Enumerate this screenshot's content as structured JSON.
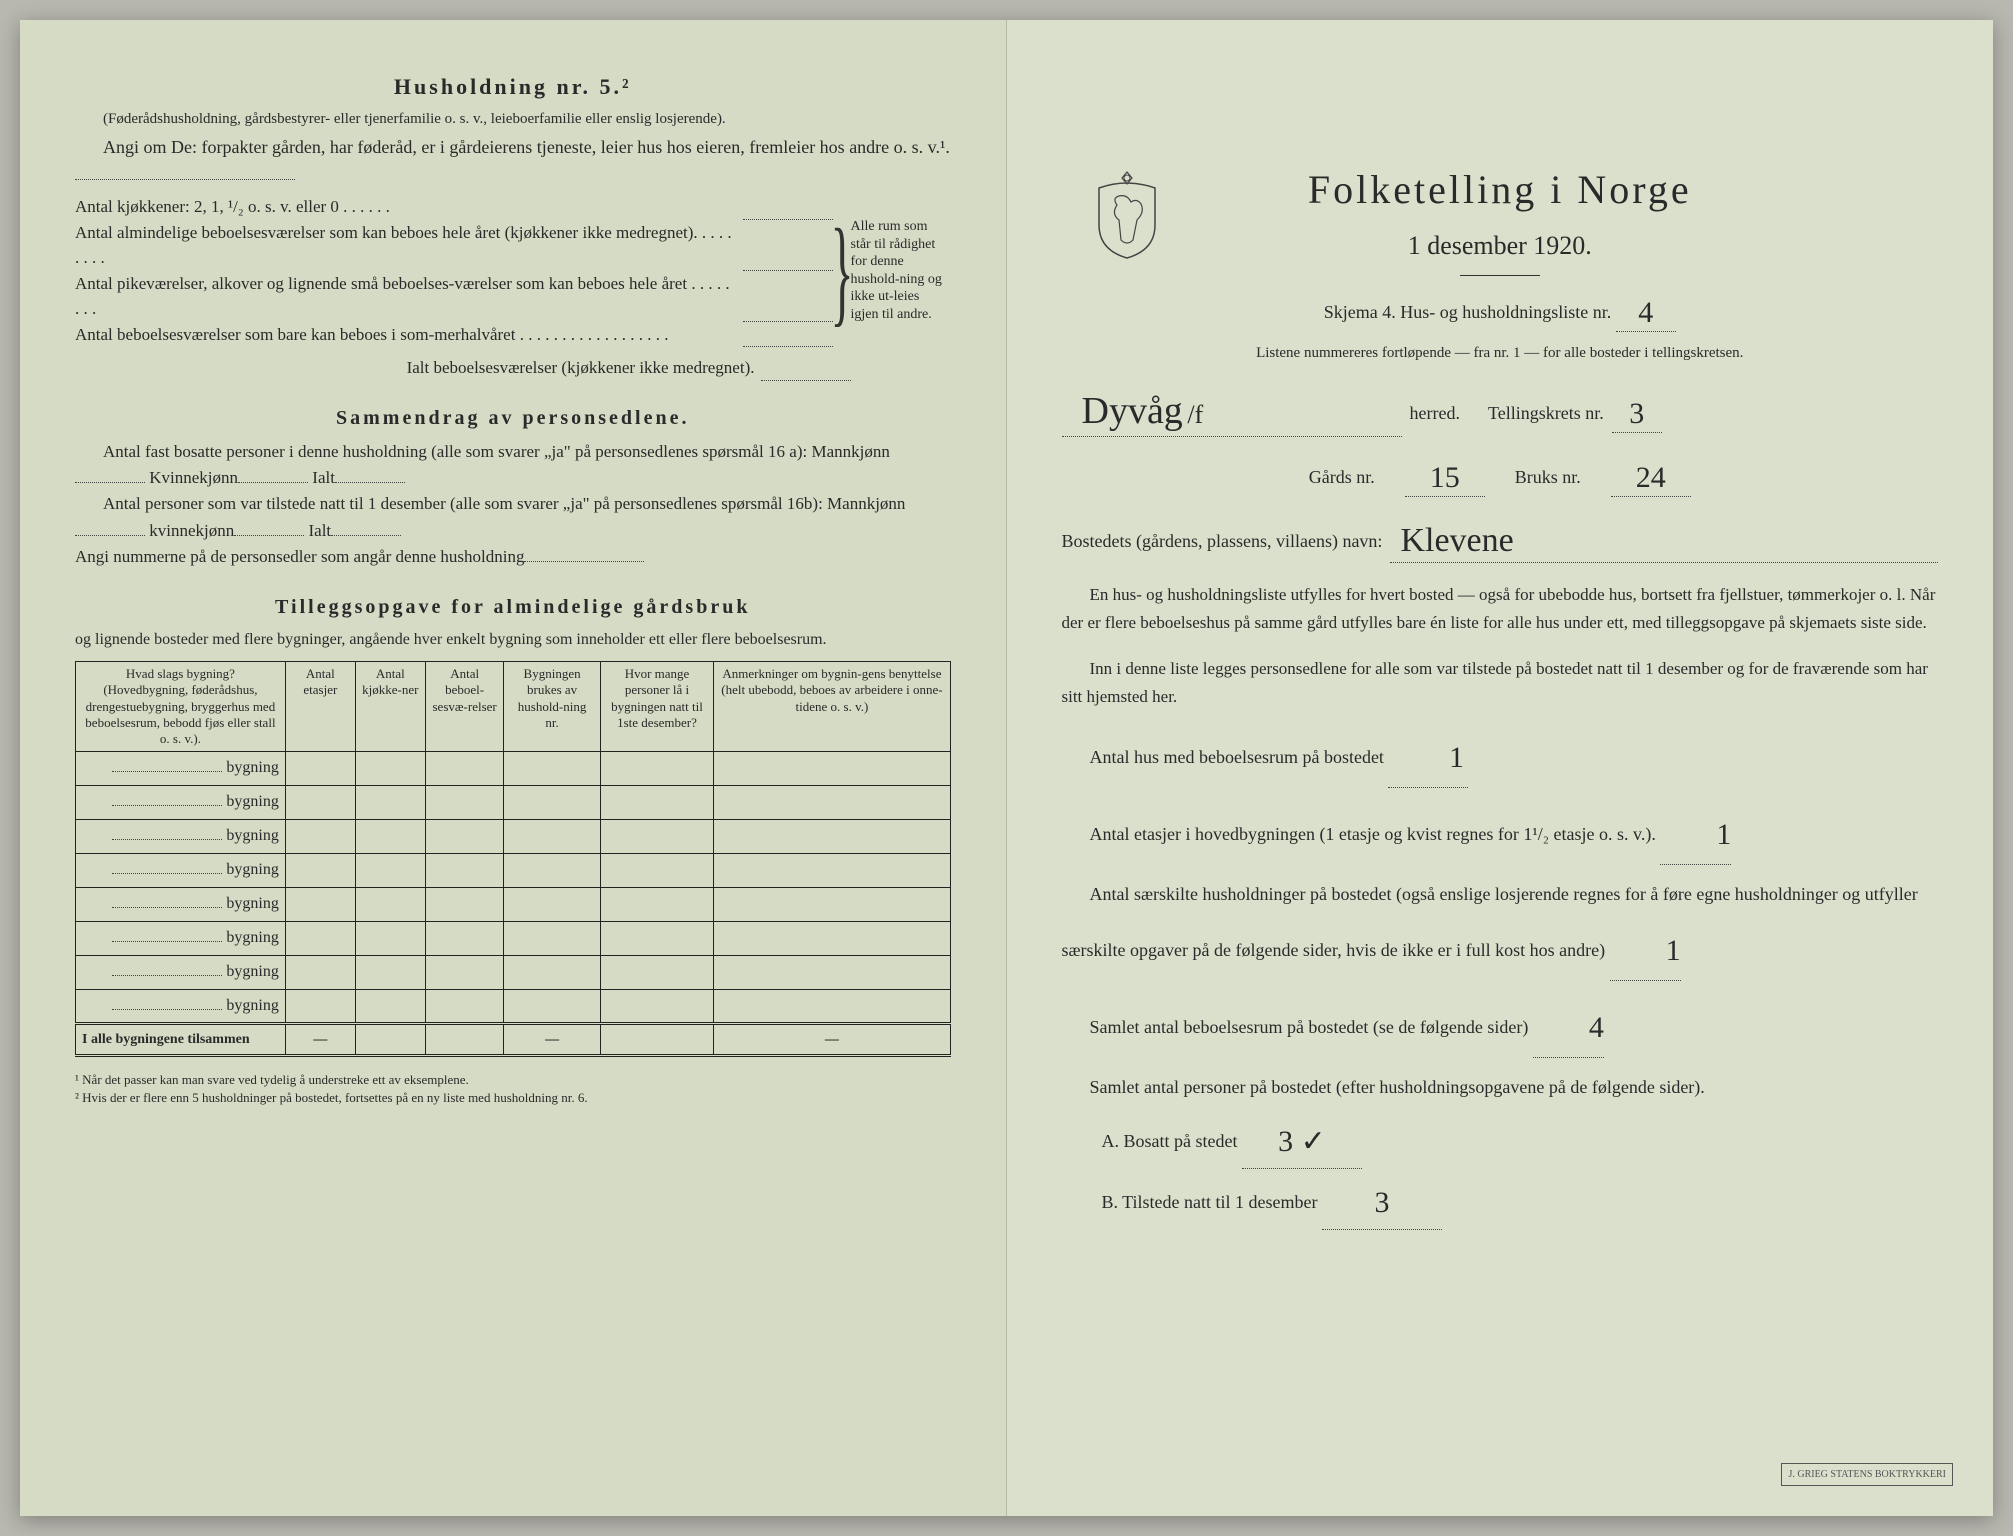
{
  "left": {
    "h5_title": "Husholdning nr. 5.²",
    "h5_note": "(Føderådshusholdning, gårdsbestyrer- eller tjenerfamilie o. s. v., leieboerfamilie eller enslig losjerende).",
    "h5_para": "Angi om De: forpakter gården, har føderåd, er i gårdeierens tjeneste, leier hus hos eieren, fremleier hos andre o. s. v.¹.",
    "brace_lines": [
      "Antal kjøkkener: 2, 1, ¹/₂ o. s. v. eller 0 . . . . . .",
      "Antal almindelige beboelsesværelser som kan beboes hele året (kjøkkener ikke medregnet). . . . . . . . .",
      "Antal pikeværelser, alkover og lignende små beboelses-værelser som kan beboes hele året . . . . . . . .",
      "Antal beboelsesværelser som bare kan beboes i som-merhalvåret . . . . . . . . . . . . . . . . . ."
    ],
    "brace_right": "Alle rum som står til rådighet for denne hushold-ning og ikke ut-leies igjen til andre.",
    "sum_label": "Ialt beboelsesværelser (kjøkkener ikke medregnet).",
    "sammen_title": "Sammendrag av personsedlene.",
    "sammen_p1a": "Antal fast bosatte personer i denne husholdning (alle som svarer „ja\" på personsedlenes spørsmål 16 a): Mannkjønn",
    "sammen_p1b": "Kvinnekjønn",
    "sammen_p1c": "Ialt",
    "sammen_p2a": "Antal personer som var tilstede natt til 1 desember (alle som svarer „ja\" på personsedlenes spørsmål 16b): Mannkjønn",
    "sammen_p2b": "kvinnekjønn",
    "sammen_p2c": "Ialt",
    "sammen_p3": "Angi nummerne på de personsedler som angår denne husholdning",
    "tillegg_title": "Tilleggsopgave for almindelige gårdsbruk",
    "tillegg_sub": "og lignende bosteder med flere bygninger, angående hver enkelt bygning som inneholder ett eller flere beboelsesrum.",
    "table": {
      "headers": [
        "Hvad slags bygning?\n(Hovedbygning, føderådshus, drengestuebygning, bryggerhus med beboelsesrum, bebodd fjøs eller stall o. s. v.).",
        "Antal etasjer",
        "Antal kjøkke-ner",
        "Antal beboel-sesvæ-relser",
        "Bygningen brukes av hushold-ning nr.",
        "Hvor mange personer lå i bygningen natt til 1ste desember?",
        "Anmerkninger om bygnin-gens benyttelse (helt ubebodd, beboes av arbeidere i onne-tidene o. s. v.)"
      ],
      "row_label": "bygning",
      "rows": 8,
      "sum_row": "I alle bygningene tilsammen"
    },
    "footnote1": "¹ Når det passer kan man svare ved tydelig å understreke ett av eksemplene.",
    "footnote2": "² Hvis der er flere enn 5 husholdninger på bostedet, fortsettes på en ny liste med husholdning nr. 6."
  },
  "right": {
    "title": "Folketelling i Norge",
    "subtitle": "1 desember 1920.",
    "skjema": "Skjema 4.  Hus- og husholdningsliste nr.",
    "skjema_val": "4",
    "listen": "Listene nummereres fortløpende — fra nr. 1 — for alle bosteder i tellingskretsen.",
    "herred_val": "Dyvåg",
    "herred_suffix": "/f",
    "herred_lbl": "herred.",
    "krets_lbl": "Tellingskrets nr.",
    "krets_val": "3",
    "gard_lbl": "Gårds nr.",
    "gard_val": "15",
    "bruk_lbl": "Bruks nr.",
    "bruk_val": "24",
    "bosted_lbl": "Bostedets (gårdens, plassens, villaens) navn:",
    "bosted_val": "Klevene",
    "para1": "En hus- og husholdningsliste utfylles for hvert bosted — også for ubebodde hus, bortsett fra fjellstuer, tømmerkojer o. l. Når der er flere beboelseshus på samme gård utfylles bare én liste for alle hus under ett, med tilleggsopgave på skjemaets siste side.",
    "para2": "Inn i denne liste legges personsedlene for alle som var tilstede på bostedet natt til 1 desember og for de fraværende som har sitt hjemsted her.",
    "q1": "Antal hus med beboelsesrum på bostedet",
    "q1_val": "1",
    "q2": "Antal etasjer i hovedbygningen (1 etasje og kvist regnes for 1¹/₂ etasje o. s. v.).",
    "q2_val": "1",
    "q3": "Antal særskilte husholdninger på bostedet (også enslige losjerende regnes for å føre egne husholdninger og utfyller særskilte opgaver på de følgende sider, hvis de ikke er i full kost hos andre)",
    "q3_val": "1",
    "q4": "Samlet antal beboelsesrum på bostedet (se de følgende sider)",
    "q4_val": "4",
    "q5": "Samlet antal personer på bostedet (efter husholdningsopgavene på de følgende sider).",
    "a_lbl": "A.  Bosatt på stedet",
    "a_val": "3 ✓",
    "b_lbl": "B.  Tilstede natt til 1 desember",
    "b_val": "3",
    "stamp": "J. GRIEG STATENS\nBOKTRYKKERI"
  }
}
